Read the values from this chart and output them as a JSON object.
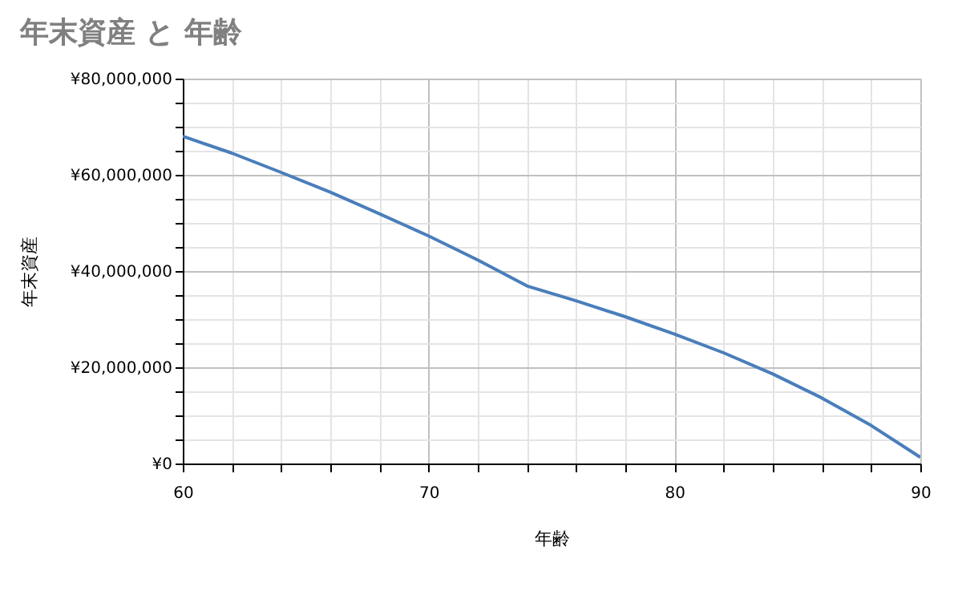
{
  "chart_data": {
    "type": "line",
    "title": "年末資産 と 年齢",
    "xlabel": "年齢",
    "ylabel": "年末資産",
    "x": [
      60,
      62,
      64,
      66,
      68,
      70,
      72,
      74,
      76,
      78,
      80,
      82,
      84,
      86,
      88,
      90
    ],
    "series": [
      {
        "color": "#4a7ebb",
        "values": [
          68000000,
          64500000,
          60500000,
          56400000,
          51900000,
          47300000,
          42300000,
          36900000,
          33800000,
          30500000,
          26900000,
          23000000,
          18600000,
          13600000,
          7900000,
          1300000
        ]
      }
    ],
    "xlim": [
      60,
      90
    ],
    "xticks": [
      60,
      {
        "value": 62,
        "label": null
      },
      {
        "value": 64,
        "label": null
      },
      {
        "value": 66,
        "label": null
      },
      {
        "value": 68,
        "label": null
      },
      70,
      {
        "value": 72,
        "label": null
      },
      {
        "value": 74,
        "label": null
      },
      {
        "value": 76,
        "label": null
      },
      {
        "value": 78,
        "label": null
      },
      80,
      {
        "value": 82,
        "label": null
      },
      {
        "value": 84,
        "label": null
      },
      {
        "value": 86,
        "label": null
      },
      {
        "value": 88,
        "label": null
      },
      90
    ],
    "ylim": [
      0,
      80000000
    ],
    "yticks": [
      {
        "value": 0,
        "label": "¥0"
      },
      {
        "value": 5000000,
        "label": null
      },
      {
        "value": 10000000,
        "label": null
      },
      {
        "value": 15000000,
        "label": null
      },
      {
        "value": 20000000,
        "label": "¥20,000,000"
      },
      {
        "value": 25000000,
        "label": null
      },
      {
        "value": 30000000,
        "label": null
      },
      {
        "value": 35000000,
        "label": null
      },
      {
        "value": 40000000,
        "label": "¥40,000,000"
      },
      {
        "value": 45000000,
        "label": null
      },
      {
        "value": 50000000,
        "label": null
      },
      {
        "value": 55000000,
        "label": null
      },
      {
        "value": 60000000,
        "label": "¥60,000,000"
      },
      {
        "value": 65000000,
        "label": null
      },
      {
        "value": 70000000,
        "label": null
      },
      {
        "value": 75000000,
        "label": null
      },
      {
        "value": 80000000,
        "label": "¥80,000,000"
      }
    ],
    "grid": true,
    "marker": "none",
    "line_style": "solid"
  }
}
